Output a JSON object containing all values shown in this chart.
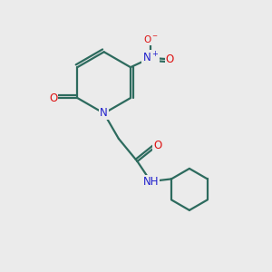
{
  "bg_color": "#ebebeb",
  "bond_color": "#2d6b5e",
  "bond_width": 1.6,
  "atom_colors": {
    "N": "#2020cc",
    "O": "#dd1111",
    "C": "#000000"
  },
  "font_size_atom": 8.5,
  "fig_size": [
    3.0,
    3.0
  ],
  "dpi": 100
}
